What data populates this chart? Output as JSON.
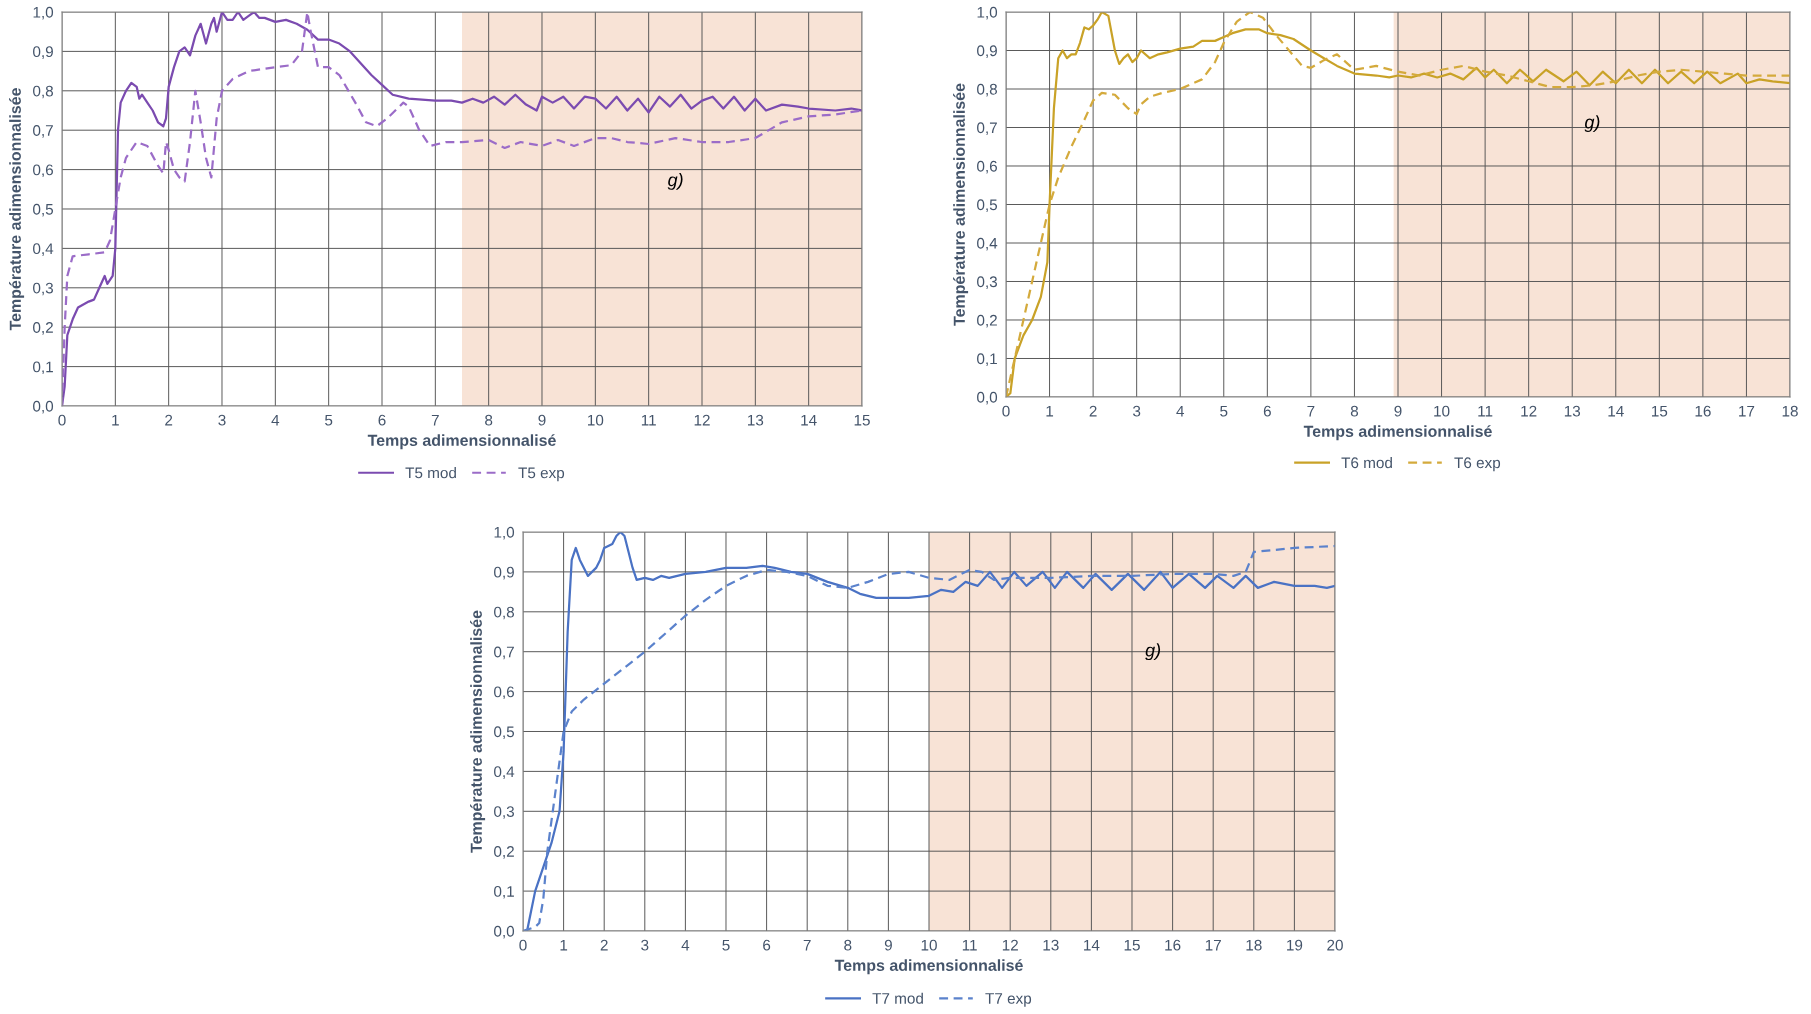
{
  "chart_data": [
    {
      "type": "line",
      "xlabel": "Temps adimensionnalisé",
      "ylabel": "Température adimensionnalisée",
      "xlim": [
        0,
        15
      ],
      "ylim": [
        0,
        1
      ],
      "xticks": [
        0,
        1,
        2,
        3,
        4,
        5,
        6,
        7,
        8,
        9,
        10,
        11,
        12,
        13,
        14,
        15
      ],
      "yticks": [
        {
          "value": 0,
          "label": "0,0"
        },
        {
          "value": 0.1,
          "label": "0,1"
        },
        {
          "value": 0.2,
          "label": "0,2"
        },
        {
          "value": 0.3,
          "label": "0,3"
        },
        {
          "value": 0.4,
          "label": "0,4"
        },
        {
          "value": 0.5,
          "label": "0,5"
        },
        {
          "value": 0.6,
          "label": "0,6"
        },
        {
          "value": 0.7,
          "label": "0,7"
        },
        {
          "value": 0.8,
          "label": "0,8"
        },
        {
          "value": 0.9,
          "label": "0,9"
        },
        {
          "value": 1,
          "label": "1,0"
        }
      ],
      "grid": true,
      "legend": "bottom",
      "bands": [
        {
          "axis": "x",
          "from": 7.5,
          "to": 15,
          "color": "#f8e3d6"
        }
      ],
      "annotations": [
        "g)"
      ],
      "series": [
        {
          "name": "T5 mod",
          "color": "#7b4bb0",
          "line_style": "solid",
          "x": [
            0,
            0.05,
            0.1,
            0.2,
            0.3,
            0.5,
            0.6,
            0.7,
            0.8,
            0.85,
            0.9,
            0.95,
            1.0,
            1.05,
            1.1,
            1.2,
            1.3,
            1.4,
            1.45,
            1.5,
            1.6,
            1.7,
            1.8,
            1.9,
            1.95,
            2.0,
            2.1,
            2.2,
            2.3,
            2.4,
            2.5,
            2.6,
            2.7,
            2.8,
            2.85,
            2.9,
            3.0,
            3.1,
            3.2,
            3.3,
            3.4,
            3.5,
            3.6,
            3.7,
            3.8,
            4.0,
            4.2,
            4.4,
            4.6,
            4.8,
            5.0,
            5.2,
            5.4,
            5.6,
            5.8,
            6.0,
            6.2,
            6.5,
            7.0,
            7.3,
            7.5,
            7.7,
            7.9,
            8.1,
            8.3,
            8.5,
            8.7,
            8.9,
            9.0,
            9.2,
            9.4,
            9.6,
            9.8,
            10.0,
            10.2,
            10.4,
            10.6,
            10.8,
            11.0,
            11.2,
            11.4,
            11.6,
            11.8,
            12.0,
            12.2,
            12.4,
            12.6,
            12.8,
            13.0,
            13.2,
            13.5,
            13.8,
            14.0,
            14.5,
            14.8,
            15.0
          ],
          "values": [
            0,
            0.05,
            0.18,
            0.22,
            0.25,
            0.265,
            0.27,
            0.3,
            0.33,
            0.31,
            0.32,
            0.33,
            0.4,
            0.7,
            0.77,
            0.8,
            0.82,
            0.81,
            0.78,
            0.79,
            0.77,
            0.75,
            0.72,
            0.71,
            0.73,
            0.81,
            0.86,
            0.9,
            0.91,
            0.89,
            0.94,
            0.97,
            0.92,
            0.97,
            0.985,
            0.95,
            1.0,
            0.98,
            0.98,
            1.0,
            0.98,
            0.99,
            1.0,
            0.985,
            0.985,
            0.975,
            0.98,
            0.97,
            0.955,
            0.93,
            0.93,
            0.92,
            0.9,
            0.87,
            0.84,
            0.815,
            0.79,
            0.78,
            0.775,
            0.775,
            0.77,
            0.78,
            0.77,
            0.785,
            0.765,
            0.79,
            0.765,
            0.75,
            0.785,
            0.77,
            0.785,
            0.755,
            0.785,
            0.78,
            0.755,
            0.785,
            0.75,
            0.78,
            0.745,
            0.785,
            0.76,
            0.79,
            0.755,
            0.775,
            0.785,
            0.755,
            0.785,
            0.75,
            0.78,
            0.75,
            0.765,
            0.76,
            0.755,
            0.75,
            0.755,
            0.75
          ]
        },
        {
          "name": "T5 exp",
          "color": "#9b6cc8",
          "line_style": "dashed",
          "x": [
            0,
            0.05,
            0.1,
            0.2,
            0.5,
            0.8,
            0.9,
            1.0,
            1.1,
            1.2,
            1.4,
            1.6,
            1.8,
            1.9,
            1.95,
            2.0,
            2.1,
            2.2,
            2.3,
            2.4,
            2.5,
            2.6,
            2.7,
            2.8,
            2.9,
            3.0,
            3.2,
            3.5,
            4.0,
            4.3,
            4.5,
            4.55,
            4.6,
            4.65,
            4.8,
            5.0,
            5.2,
            5.5,
            5.7,
            5.9,
            6.1,
            6.4,
            6.5,
            6.7,
            6.9,
            7.2,
            7.5,
            8.0,
            8.3,
            8.6,
            9.0,
            9.3,
            9.6,
            10.0,
            10.3,
            10.6,
            11.0,
            11.5,
            12.0,
            12.5,
            13.0,
            13.5,
            14.0,
            14.5,
            15.0
          ],
          "values": [
            0,
            0.2,
            0.33,
            0.38,
            0.385,
            0.39,
            0.42,
            0.5,
            0.58,
            0.63,
            0.67,
            0.66,
            0.61,
            0.59,
            0.67,
            0.65,
            0.6,
            0.58,
            0.57,
            0.67,
            0.8,
            0.72,
            0.63,
            0.58,
            0.73,
            0.8,
            0.83,
            0.85,
            0.86,
            0.865,
            0.9,
            0.95,
            1.0,
            0.96,
            0.86,
            0.86,
            0.84,
            0.77,
            0.72,
            0.71,
            0.73,
            0.77,
            0.76,
            0.7,
            0.66,
            0.67,
            0.67,
            0.675,
            0.655,
            0.67,
            0.66,
            0.675,
            0.66,
            0.68,
            0.68,
            0.67,
            0.665,
            0.68,
            0.67,
            0.67,
            0.68,
            0.72,
            0.735,
            0.74,
            0.75
          ]
        }
      ]
    },
    {
      "type": "line",
      "xlabel": "Temps adimensionnalisé",
      "ylabel": "Température adimensionnalisée",
      "xlim": [
        0,
        18
      ],
      "ylim": [
        0,
        1
      ],
      "xticks": [
        0,
        1,
        2,
        3,
        4,
        5,
        6,
        7,
        8,
        9,
        10,
        11,
        12,
        13,
        14,
        15,
        16,
        17,
        18
      ],
      "yticks": [
        {
          "value": 0,
          "label": "0,0"
        },
        {
          "value": 0.1,
          "label": "0,1"
        },
        {
          "value": 0.2,
          "label": "0,2"
        },
        {
          "value": 0.3,
          "label": "0,3"
        },
        {
          "value": 0.4,
          "label": "0,4"
        },
        {
          "value": 0.5,
          "label": "0,5"
        },
        {
          "value": 0.6,
          "label": "0,6"
        },
        {
          "value": 0.7,
          "label": "0,7"
        },
        {
          "value": 0.8,
          "label": "0,8"
        },
        {
          "value": 0.9,
          "label": "0,9"
        },
        {
          "value": 1,
          "label": "1,0"
        }
      ],
      "grid": true,
      "legend": "bottom",
      "bands": [
        {
          "axis": "x",
          "from": 8.9,
          "to": 18,
          "color": "#f8e3d6"
        }
      ],
      "annotations": [
        "g)"
      ],
      "series": [
        {
          "name": "T6 mod",
          "color": "#c9a227",
          "line_style": "solid",
          "x": [
            0,
            0.1,
            0.2,
            0.4,
            0.6,
            0.8,
            0.95,
            1.0,
            1.1,
            1.2,
            1.3,
            1.4,
            1.5,
            1.6,
            1.7,
            1.8,
            1.9,
            2.0,
            2.1,
            2.2,
            2.35,
            2.5,
            2.6,
            2.7,
            2.8,
            2.9,
            3.0,
            3.1,
            3.3,
            3.5,
            3.7,
            4.0,
            4.3,
            4.5,
            4.8,
            5.0,
            5.2,
            5.5,
            5.8,
            6.0,
            6.3,
            6.6,
            7.0,
            7.3,
            7.6,
            8.0,
            8.5,
            8.8,
            9.0,
            9.3,
            9.6,
            9.9,
            10.2,
            10.5,
            10.8,
            11.0,
            11.2,
            11.5,
            11.8,
            12.1,
            12.4,
            12.8,
            13.1,
            13.4,
            13.7,
            14.0,
            14.3,
            14.6,
            14.9,
            15.2,
            15.5,
            15.8,
            16.1,
            16.4,
            16.8,
            17.0,
            17.3,
            17.6,
            18.0
          ],
          "values": [
            0,
            0.01,
            0.1,
            0.16,
            0.2,
            0.26,
            0.35,
            0.5,
            0.75,
            0.88,
            0.9,
            0.88,
            0.89,
            0.89,
            0.92,
            0.96,
            0.955,
            0.965,
            0.98,
            1.0,
            0.99,
            0.9,
            0.865,
            0.88,
            0.89,
            0.87,
            0.88,
            0.9,
            0.88,
            0.89,
            0.895,
            0.905,
            0.91,
            0.925,
            0.925,
            0.935,
            0.945,
            0.955,
            0.955,
            0.945,
            0.94,
            0.93,
            0.9,
            0.88,
            0.86,
            0.84,
            0.835,
            0.83,
            0.835,
            0.83,
            0.84,
            0.83,
            0.84,
            0.825,
            0.855,
            0.83,
            0.85,
            0.815,
            0.85,
            0.82,
            0.85,
            0.82,
            0.845,
            0.81,
            0.845,
            0.815,
            0.85,
            0.815,
            0.85,
            0.815,
            0.845,
            0.815,
            0.845,
            0.815,
            0.84,
            0.815,
            0.825,
            0.82,
            0.815
          ]
        },
        {
          "name": "T6 exp",
          "color": "#d4aa3c",
          "line_style": "dashed",
          "x": [
            0,
            0.2,
            0.4,
            0.6,
            0.8,
            1.0,
            1.2,
            1.5,
            1.8,
            2.0,
            2.2,
            2.5,
            2.8,
            3.0,
            3.1,
            3.3,
            3.6,
            4.0,
            4.5,
            4.8,
            5.0,
            5.3,
            5.6,
            5.9,
            6.2,
            6.5,
            6.8,
            7.0,
            7.3,
            7.6,
            8.0,
            8.5,
            9.0,
            9.5,
            10.0,
            10.5,
            11.0,
            11.5,
            12.0,
            12.5,
            13.0,
            13.5,
            14.0,
            14.5,
            15.0,
            15.5,
            16.0,
            16.5,
            17.0,
            18.0
          ],
          "values": [
            0,
            0.1,
            0.2,
            0.3,
            0.4,
            0.5,
            0.57,
            0.65,
            0.72,
            0.77,
            0.79,
            0.785,
            0.75,
            0.735,
            0.76,
            0.78,
            0.79,
            0.8,
            0.825,
            0.87,
            0.92,
            0.975,
            1.0,
            0.985,
            0.94,
            0.9,
            0.86,
            0.855,
            0.875,
            0.89,
            0.85,
            0.86,
            0.845,
            0.835,
            0.85,
            0.86,
            0.845,
            0.835,
            0.82,
            0.805,
            0.805,
            0.81,
            0.82,
            0.835,
            0.845,
            0.85,
            0.845,
            0.84,
            0.835,
            0.835
          ]
        }
      ]
    },
    {
      "type": "line",
      "xlabel": "Temps adimensionnalisé",
      "ylabel": "Température adimensionnalisée",
      "xlim": [
        0,
        20
      ],
      "ylim": [
        0,
        1
      ],
      "xticks": [
        0,
        1,
        2,
        3,
        4,
        5,
        6,
        7,
        8,
        9,
        10,
        11,
        12,
        13,
        14,
        15,
        16,
        17,
        18,
        19,
        20
      ],
      "yticks": [
        {
          "value": 0,
          "label": "0,0"
        },
        {
          "value": 0.1,
          "label": "0,1"
        },
        {
          "value": 0.2,
          "label": "0,2"
        },
        {
          "value": 0.3,
          "label": "0,3"
        },
        {
          "value": 0.4,
          "label": "0,4"
        },
        {
          "value": 0.5,
          "label": "0,5"
        },
        {
          "value": 0.6,
          "label": "0,6"
        },
        {
          "value": 0.7,
          "label": "0,7"
        },
        {
          "value": 0.8,
          "label": "0,8"
        },
        {
          "value": 0.9,
          "label": "0,9"
        },
        {
          "value": 1,
          "label": "1,0"
        }
      ],
      "grid": true,
      "legend": "bottom",
      "bands": [
        {
          "axis": "x",
          "from": 10,
          "to": 20,
          "color": "#f8e3d6"
        }
      ],
      "annotations": [
        "g)"
      ],
      "series": [
        {
          "name": "T7 mod",
          "color": "#4a72c4",
          "line_style": "solid",
          "x": [
            0,
            0.1,
            0.2,
            0.3,
            0.5,
            0.7,
            0.9,
            1.0,
            1.1,
            1.2,
            1.3,
            1.4,
            1.6,
            1.8,
            1.9,
            2.0,
            2.2,
            2.3,
            2.4,
            2.5,
            2.6,
            2.7,
            2.8,
            3.0,
            3.2,
            3.4,
            3.6,
            3.8,
            4.0,
            4.5,
            5.0,
            5.5,
            5.9,
            6.2,
            6.6,
            7.0,
            7.5,
            8.0,
            8.3,
            8.7,
            9.0,
            9.5,
            10.0,
            10.3,
            10.6,
            10.9,
            11.2,
            11.5,
            11.8,
            12.1,
            12.4,
            12.8,
            13.1,
            13.4,
            13.8,
            14.1,
            14.5,
            14.9,
            15.3,
            15.7,
            16.0,
            16.4,
            16.8,
            17.1,
            17.5,
            17.8,
            18.1,
            18.5,
            19.0,
            19.5,
            19.8,
            20.0
          ],
          "values": [
            0,
            0,
            0.05,
            0.1,
            0.16,
            0.22,
            0.3,
            0.45,
            0.75,
            0.93,
            0.96,
            0.93,
            0.89,
            0.91,
            0.93,
            0.96,
            0.97,
            0.99,
            1.0,
            0.99,
            0.95,
            0.91,
            0.88,
            0.885,
            0.88,
            0.89,
            0.885,
            0.89,
            0.895,
            0.9,
            0.91,
            0.91,
            0.915,
            0.91,
            0.9,
            0.895,
            0.875,
            0.86,
            0.845,
            0.835,
            0.835,
            0.835,
            0.84,
            0.855,
            0.85,
            0.875,
            0.865,
            0.9,
            0.86,
            0.9,
            0.865,
            0.9,
            0.86,
            0.9,
            0.86,
            0.895,
            0.855,
            0.895,
            0.855,
            0.9,
            0.86,
            0.895,
            0.86,
            0.89,
            0.86,
            0.89,
            0.86,
            0.875,
            0.865,
            0.865,
            0.86,
            0.865
          ]
        },
        {
          "name": "T7 exp",
          "color": "#5b82cc",
          "line_style": "dashed",
          "x": [
            0,
            0.3,
            0.4,
            0.5,
            0.6,
            0.8,
            1.0,
            1.2,
            1.5,
            2.0,
            2.5,
            3.0,
            3.5,
            4.0,
            4.5,
            5.0,
            5.5,
            6.0,
            6.5,
            7.0,
            7.5,
            8.0,
            8.5,
            9.0,
            9.5,
            10.0,
            10.5,
            11.0,
            11.3,
            11.6,
            12.0,
            13.0,
            14.0,
            15.0,
            16.0,
            17.0,
            17.5,
            17.8,
            18.0,
            18.5,
            19.0,
            20.0
          ],
          "values": [
            0,
            0.01,
            0.02,
            0.08,
            0.2,
            0.35,
            0.5,
            0.55,
            0.58,
            0.62,
            0.66,
            0.7,
            0.745,
            0.79,
            0.83,
            0.865,
            0.89,
            0.905,
            0.9,
            0.89,
            0.865,
            0.86,
            0.875,
            0.895,
            0.9,
            0.885,
            0.88,
            0.905,
            0.9,
            0.88,
            0.885,
            0.885,
            0.89,
            0.89,
            0.895,
            0.895,
            0.89,
            0.9,
            0.95,
            0.955,
            0.96,
            0.965
          ]
        }
      ]
    }
  ]
}
